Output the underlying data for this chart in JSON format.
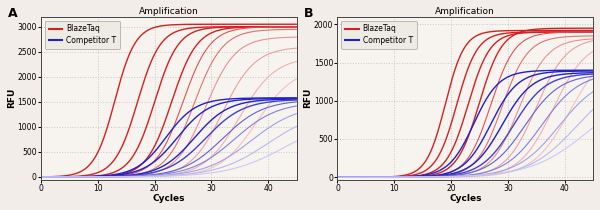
{
  "panel_A": {
    "title": "Amplification",
    "xlabel": "Cycles",
    "ylabel": "RFU",
    "xlim": [
      0,
      45
    ],
    "ylim": [
      -50,
      3200
    ],
    "yticks": [
      0,
      500,
      1000,
      1500,
      2000,
      2500,
      3000
    ],
    "xticks": [
      0,
      10,
      20,
      30,
      40
    ],
    "red_curves": {
      "midpoints": [
        13,
        17,
        20,
        23,
        25,
        27,
        29,
        32,
        35,
        38
      ],
      "plateaus": [
        3050,
        3000,
        3000,
        3000,
        3000,
        2950,
        2800,
        2600,
        2400,
        2200
      ],
      "steepness": [
        0.55,
        0.5,
        0.48,
        0.45,
        0.42,
        0.4,
        0.38,
        0.35,
        0.32,
        0.3
      ]
    },
    "blue_curves": {
      "midpoints": [
        22,
        24,
        27,
        29,
        32,
        34,
        37,
        40,
        43
      ],
      "plateaus": [
        1580,
        1570,
        1560,
        1550,
        1540,
        1500,
        1450,
        1350,
        1200
      ],
      "steepness": [
        0.38,
        0.35,
        0.33,
        0.3,
        0.28,
        0.26,
        0.24,
        0.22,
        0.2
      ]
    }
  },
  "panel_B": {
    "title": "Amplification",
    "xlabel": "Cycles",
    "ylabel": "RFU",
    "xlim": [
      0,
      45
    ],
    "ylim": [
      -30,
      2100
    ],
    "yticks": [
      0,
      500,
      1000,
      1500,
      2000
    ],
    "xticks": [
      0,
      10,
      20,
      30,
      40
    ],
    "red_curves": {
      "midpoints": [
        19,
        21,
        23,
        25,
        27,
        29,
        32,
        35,
        38,
        41
      ],
      "plateaus": [
        1920,
        1900,
        1900,
        1950,
        1900,
        1850,
        1820,
        1830,
        1800,
        1750
      ],
      "steepness": [
        0.6,
        0.55,
        0.52,
        0.5,
        0.47,
        0.44,
        0.4,
        0.37,
        0.34,
        0.3
      ]
    },
    "blue_curves": {
      "midpoints": [
        24,
        27,
        29,
        31,
        33,
        36,
        39,
        42,
        44
      ],
      "plateaus": [
        1400,
        1390,
        1370,
        1360,
        1350,
        1370,
        1340,
        1320,
        1180
      ],
      "steepness": [
        0.45,
        0.42,
        0.38,
        0.35,
        0.32,
        0.3,
        0.27,
        0.24,
        0.2
      ]
    }
  },
  "red_colors": [
    "#d42020",
    "#d42020",
    "#d42020",
    "#d42020",
    "#e05050",
    "#e07070",
    "#e89090",
    "#eba0a0",
    "#f0b0b0",
    "#f5c0c0"
  ],
  "blue_colors": [
    "#2020cc",
    "#2020cc",
    "#2020cc",
    "#4040d0",
    "#6060d8",
    "#8080e0",
    "#a0a0e8",
    "#b8b8f0",
    "#c8c8f8"
  ],
  "background_color": "#f2ede8",
  "plot_bg_color": "#f7f4ef",
  "grid_color": "#c8c8c8",
  "spine_color": "#444444",
  "label_A": "A",
  "label_B": "B",
  "legend_labels": [
    "BlazeTaq",
    "Competitor T"
  ]
}
